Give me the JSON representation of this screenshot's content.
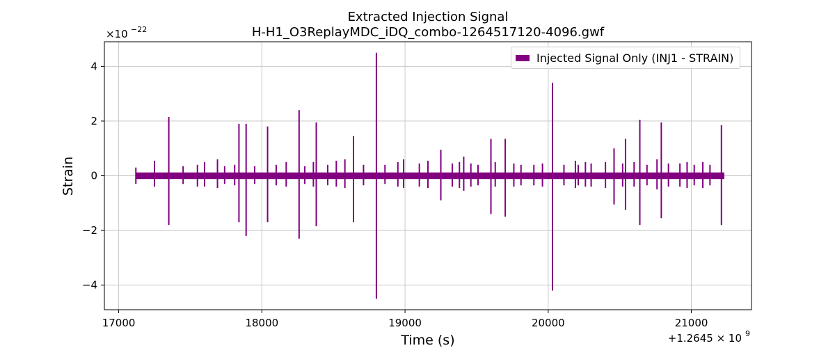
{
  "chart_data": {
    "type": "line",
    "title": "Extracted Injection Signal",
    "subtitle": "H-H1_O3ReplayMDC_iDQ_combo-1264517120-4096.gwf",
    "xlabel": "Time (s)",
    "ylabel": "Strain",
    "x_offset_label": "+1.2645 × 10",
    "x_offset_exponent": "9",
    "y_multiplier_label": "×10",
    "y_multiplier_exponent": "−22",
    "xlim": [
      16900,
      21420
    ],
    "ylim": [
      -4.9,
      4.9
    ],
    "x_ticks": [
      17000,
      18000,
      19000,
      20000,
      21000
    ],
    "x_tick_labels": [
      "17000",
      "18000",
      "19000",
      "20000",
      "21000"
    ],
    "y_ticks": [
      -4,
      -2,
      0,
      2,
      4
    ],
    "y_tick_labels": [
      "−4",
      "−2",
      "0",
      "2",
      "4"
    ],
    "grid": true,
    "legend_position": "top-right",
    "series": [
      {
        "name": "Injected Signal Only (INJ1 - STRAIN)",
        "color": "#800080",
        "baseline": {
          "x_start": 17120,
          "x_end": 21230,
          "amplitude": 0.12
        },
        "x": [
          17120,
          17250,
          17350,
          17450,
          17550,
          17600,
          17690,
          17740,
          17810,
          17840,
          17890,
          17950,
          18040,
          18100,
          18170,
          18260,
          18300,
          18360,
          18380,
          18460,
          18520,
          18580,
          18640,
          18710,
          18800,
          18860,
          18950,
          18990,
          19100,
          19160,
          19250,
          19330,
          19380,
          19410,
          19460,
          19510,
          19600,
          19630,
          19700,
          19760,
          19810,
          19900,
          19960,
          20030,
          20110,
          20190,
          20210,
          20260,
          20300,
          20400,
          20460,
          20520,
          20540,
          20600,
          20640,
          20690,
          20760,
          20790,
          20840,
          20920,
          20970,
          21020,
          21080,
          21130,
          21210
        ],
        "high": [
          0.3,
          0.55,
          2.15,
          0.35,
          0.4,
          0.5,
          0.6,
          0.35,
          0.4,
          1.9,
          1.9,
          0.35,
          1.8,
          0.4,
          0.5,
          2.4,
          0.35,
          0.5,
          1.95,
          0.4,
          0.55,
          0.6,
          1.45,
          0.4,
          4.5,
          0.4,
          0.5,
          0.6,
          0.45,
          0.55,
          0.95,
          0.45,
          0.5,
          0.7,
          0.45,
          0.4,
          1.35,
          0.5,
          1.35,
          0.45,
          0.4,
          0.4,
          0.45,
          3.4,
          0.4,
          0.55,
          0.4,
          0.5,
          0.45,
          0.5,
          1.0,
          0.45,
          1.35,
          0.5,
          2.05,
          0.4,
          0.6,
          1.95,
          0.45,
          0.45,
          0.5,
          0.4,
          0.5,
          0.4,
          1.85
        ],
        "low": [
          -0.3,
          -0.4,
          -1.8,
          -0.3,
          -0.4,
          -0.4,
          -0.45,
          -0.3,
          -0.35,
          -1.7,
          -2.2,
          -0.3,
          -1.7,
          -0.35,
          -0.4,
          -2.3,
          -0.3,
          -0.4,
          -1.85,
          -0.35,
          -0.4,
          -0.45,
          -1.7,
          -0.35,
          -4.5,
          -0.3,
          -0.4,
          -0.45,
          -0.4,
          -0.45,
          -0.9,
          -0.4,
          -0.45,
          -0.55,
          -0.4,
          -0.35,
          -1.4,
          -0.4,
          -1.5,
          -0.4,
          -0.35,
          -0.35,
          -0.4,
          -4.2,
          -0.35,
          -0.45,
          -0.35,
          -0.4,
          -0.4,
          -0.45,
          -1.05,
          -0.4,
          -1.25,
          -0.4,
          -1.8,
          -0.35,
          -0.5,
          -1.55,
          -0.4,
          -0.4,
          -0.45,
          -0.35,
          -0.45,
          -0.35,
          -1.8
        ]
      }
    ]
  }
}
